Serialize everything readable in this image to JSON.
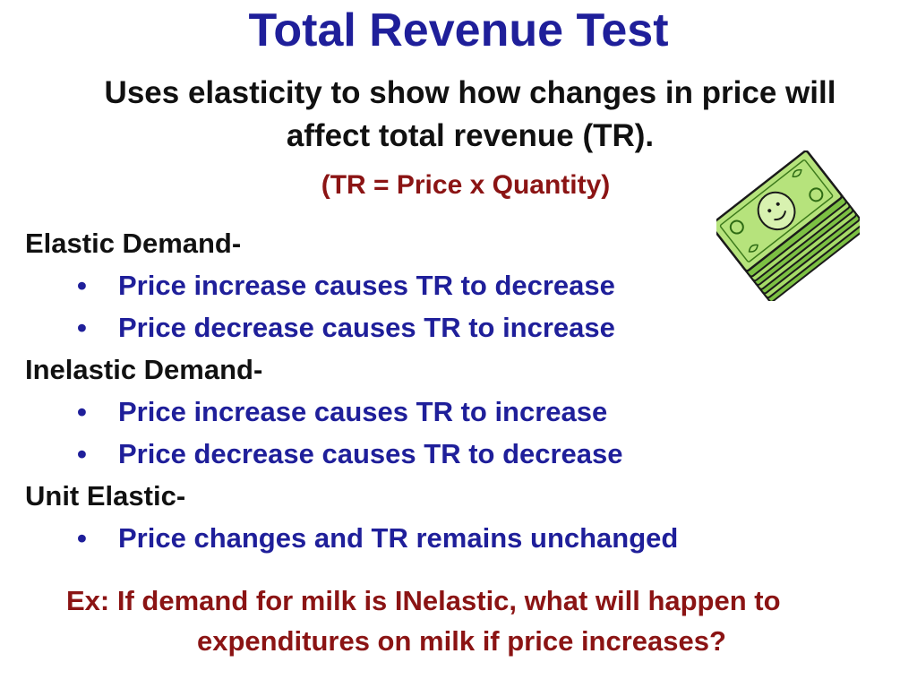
{
  "slide": {
    "title": "Total Revenue Test",
    "subtitle_line1": "Uses elasticity to show how changes in price will",
    "subtitle_line2": "affect total revenue (TR).",
    "formula": "(TR = Price x Quantity)"
  },
  "sections": [
    {
      "heading": "Elastic Demand-",
      "bullets": [
        "Price increase causes TR to decrease",
        "Price decrease causes TR to increase"
      ]
    },
    {
      "heading": "Inelastic Demand-",
      "bullets": [
        "Price increase causes TR to increase",
        "Price decrease causes TR to decrease"
      ]
    },
    {
      "heading": "Unit Elastic-",
      "bullets": [
        "Price changes and TR remains unchanged"
      ]
    }
  ],
  "bullet_glyph": "•",
  "example": {
    "line1": "Ex: If demand for milk is INelastic, what will happen to",
    "line2": "expenditures on milk if price increases?"
  },
  "clipart": {
    "icon": "money-stack-icon"
  },
  "colors": {
    "title": "#1f1f9a",
    "bullets": "#1f1f9a",
    "formula": "#8b1414",
    "example": "#8b1414",
    "body": "#111111",
    "money_green": "#8fd14f"
  }
}
